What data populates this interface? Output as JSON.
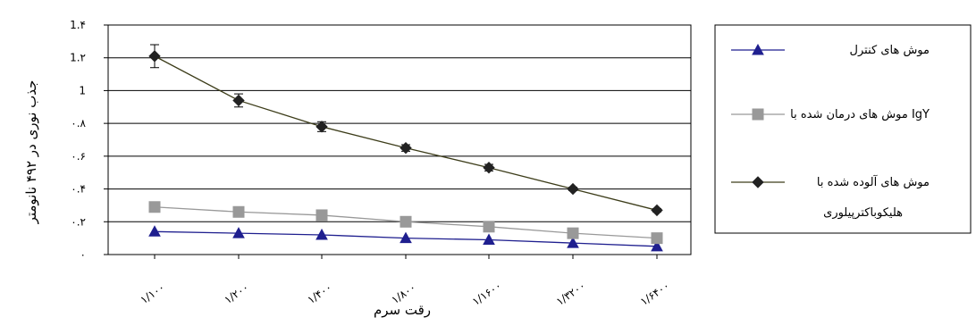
{
  "chart_data": {
    "type": "line",
    "title": "",
    "xlabel": "رقت سرم",
    "ylabel": "جذب نوری در ۴۹۲ نانومتر",
    "categories": [
      "۱/۱۰۰",
      "۱/۲۰۰",
      "۱/۴۰۰",
      "۱/۸۰۰",
      "۱/۱۶۰۰",
      "۱/۳۲۰۰",
      "۱/۶۴۰۰"
    ],
    "ylim": [
      0,
      1.4
    ],
    "yticks": [
      {
        "value": 0,
        "label": "۰"
      },
      {
        "value": 0.2,
        "label": "۰.۲"
      },
      {
        "value": 0.4,
        "label": "۰.۴"
      },
      {
        "value": 0.6,
        "label": "۰.۶"
      },
      {
        "value": 0.8,
        "label": "۰.۸"
      },
      {
        "value": 1.0,
        "label": "1"
      },
      {
        "value": 1.2,
        "label": "1.۲"
      },
      {
        "value": 1.4,
        "label": "1.۴"
      }
    ],
    "grid": true,
    "legend_position": "right",
    "series": [
      {
        "name": "موش های کنترل",
        "marker": "triangle",
        "color": "#1f1f8f",
        "values": [
          0.14,
          0.13,
          0.12,
          0.1,
          0.09,
          0.07,
          0.05
        ],
        "errors": []
      },
      {
        "name": "موش های درمان شده با IgY",
        "marker": "square",
        "color": "#999999",
        "values": [
          0.29,
          0.26,
          0.24,
          0.2,
          0.17,
          0.13,
          0.1
        ],
        "errors": []
      },
      {
        "name": "موش های آلوده شده با هلیکوباکترپیلوری",
        "marker": "diamond",
        "color": "#3d3d1a",
        "values": [
          1.21,
          0.94,
          0.78,
          0.65,
          0.53,
          0.4,
          0.27
        ],
        "errors": [
          0.07,
          0.04,
          0.03,
          0.02,
          0.02,
          0.01,
          0.01
        ]
      }
    ]
  }
}
